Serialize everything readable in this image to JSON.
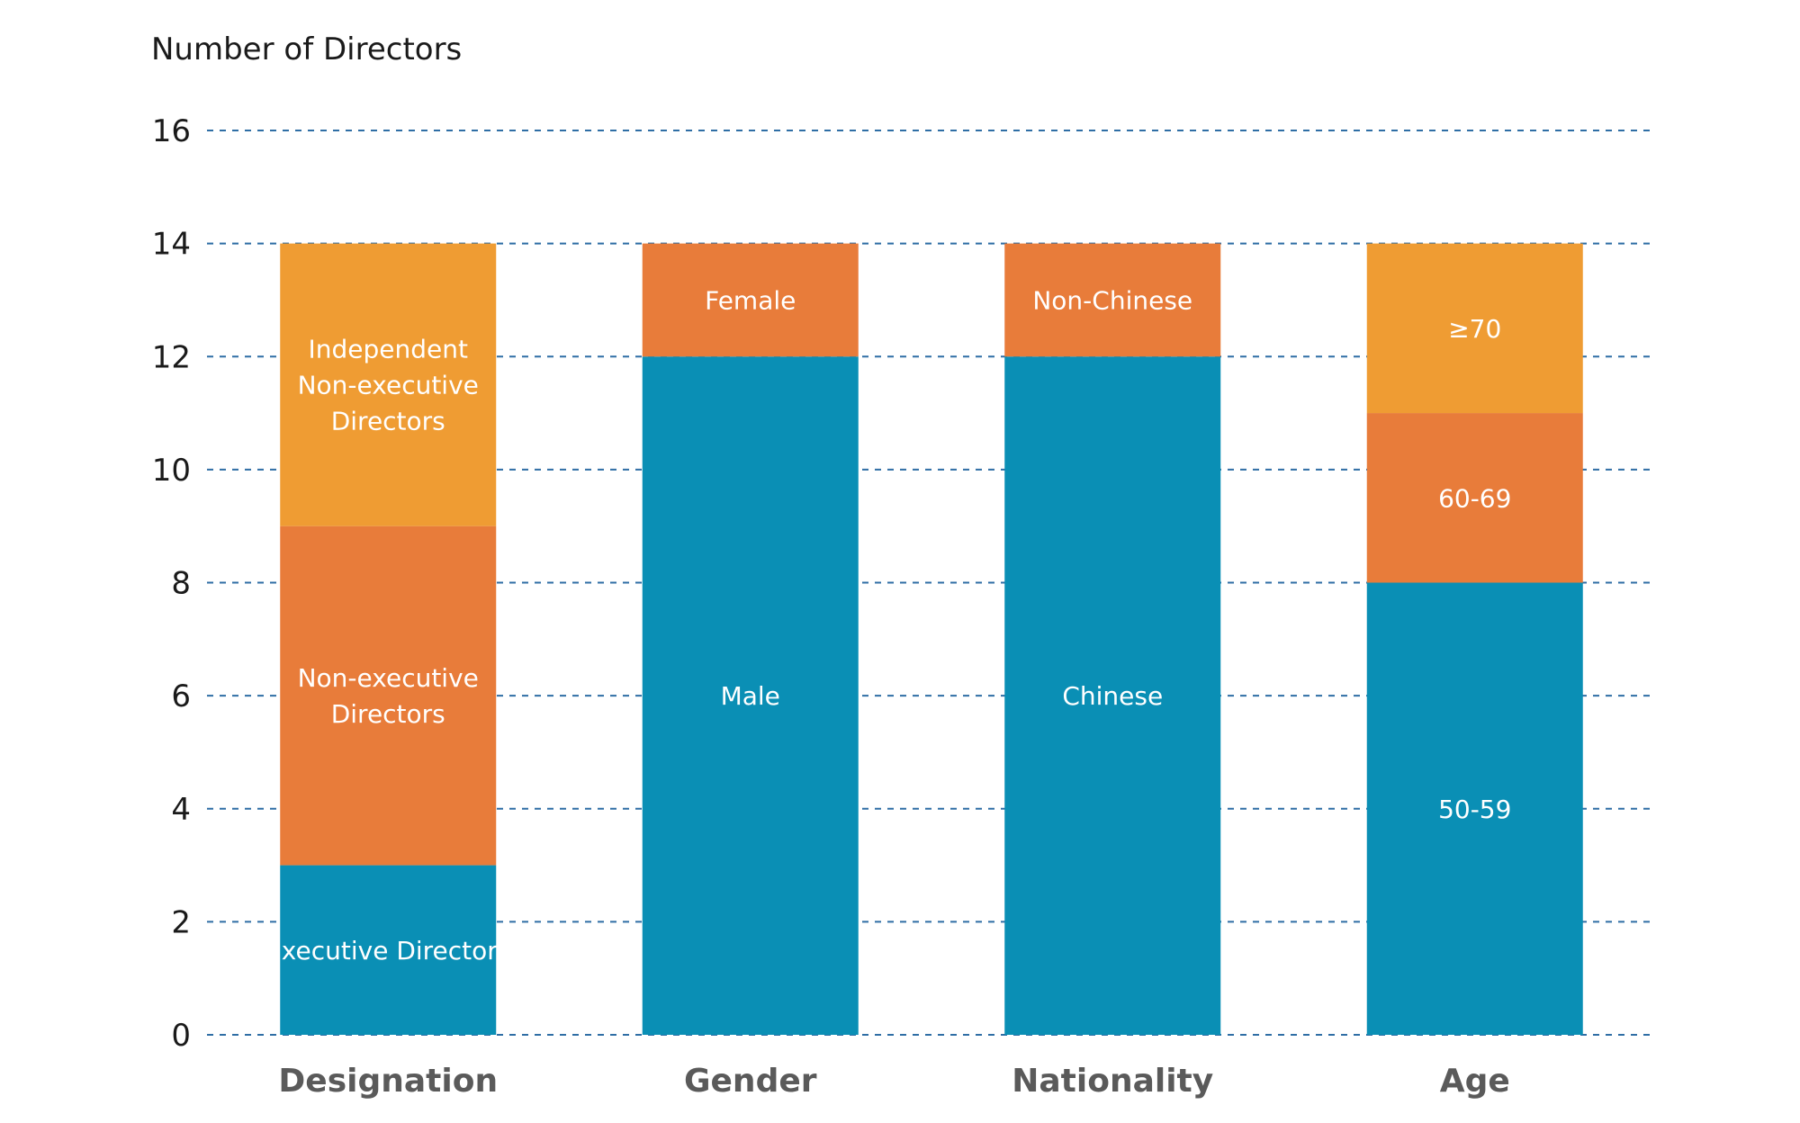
{
  "chart_data": {
    "type": "bar",
    "stacked": true,
    "title": "",
    "ylabel": "Number of Directors",
    "xlabel": "",
    "ylim": [
      0,
      16
    ],
    "yticks": [
      0,
      2,
      4,
      6,
      8,
      10,
      12,
      14,
      16
    ],
    "grid": true,
    "categories": [
      "Designation",
      "Gender",
      "Nationality",
      "Age"
    ],
    "colors": {
      "blue": "#0a8fb5",
      "orange": "#e87c3a",
      "amber": "#ef9c33"
    },
    "stacks": [
      {
        "category": "Designation",
        "segments": [
          {
            "label": "Executive Directors",
            "value": 3,
            "color": "#0a8fb5"
          },
          {
            "label": "Non-executive Directors",
            "value": 6,
            "color": "#e87c3a"
          },
          {
            "label": "Independent Non-executive Directors",
            "value": 5,
            "color": "#ef9c33"
          }
        ]
      },
      {
        "category": "Gender",
        "segments": [
          {
            "label": "Male",
            "value": 12,
            "color": "#0a8fb5"
          },
          {
            "label": "Female",
            "value": 2,
            "color": "#e87c3a"
          }
        ]
      },
      {
        "category": "Nationality",
        "segments": [
          {
            "label": "Chinese",
            "value": 12,
            "color": "#0a8fb5"
          },
          {
            "label": "Non-Chinese",
            "value": 2,
            "color": "#e87c3a"
          }
        ]
      },
      {
        "category": "Age",
        "segments": [
          {
            "label": "50-59",
            "value": 8,
            "color": "#0a8fb5"
          },
          {
            "label": "60-69",
            "value": 3,
            "color": "#e87c3a"
          },
          {
            "label": "≥70",
            "value": 3,
            "color": "#ef9c33"
          }
        ]
      }
    ]
  }
}
